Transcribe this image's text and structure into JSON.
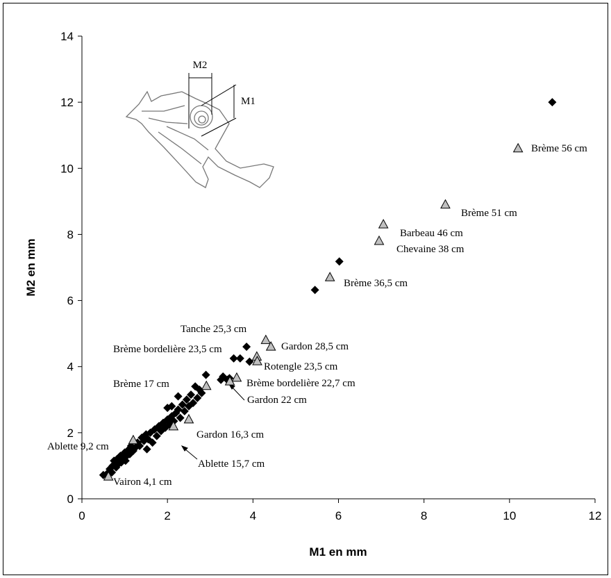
{
  "chart_data": {
    "type": "scatter",
    "x_label": "M1 en mm",
    "y_label": "M2 en mm",
    "xlim": [
      0,
      12
    ],
    "xticks": [
      0,
      2,
      4,
      6,
      8,
      10,
      12
    ],
    "ylim": [
      0,
      14
    ],
    "yticks": [
      0,
      2,
      4,
      6,
      8,
      10,
      12,
      14
    ],
    "grid": false,
    "inset_labels": [
      "M2",
      "M1"
    ],
    "series": [
      {
        "marker": "diamond",
        "color": "#000000",
        "x": [
          0.5,
          0.58,
          0.65,
          0.7,
          0.72,
          0.75,
          0.8,
          0.82,
          0.85,
          0.9,
          0.92,
          0.95,
          1.0,
          1.02,
          1.05,
          1.1,
          1.12,
          1.15,
          1.2,
          1.25,
          1.3,
          1.35,
          1.4,
          1.45,
          1.5,
          1.52,
          1.55,
          1.6,
          1.65,
          1.7,
          1.75,
          1.8,
          1.85,
          1.9,
          1.95,
          2.0,
          2.0,
          2.05,
          2.1,
          2.1,
          2.15,
          2.2,
          2.25,
          2.25,
          2.3,
          2.35,
          2.4,
          2.45,
          2.5,
          2.55,
          2.6,
          2.65,
          2.7,
          2.75,
          2.8,
          2.9,
          3.25,
          3.3,
          3.4,
          3.45,
          3.55,
          3.7,
          3.85,
          3.92,
          5.45,
          6.02,
          11.0
        ],
        "values": [
          0.72,
          0.75,
          0.9,
          0.8,
          1.0,
          1.15,
          0.95,
          1.2,
          1.05,
          1.3,
          1.1,
          1.25,
          1.4,
          1.15,
          1.3,
          1.5,
          1.35,
          1.6,
          1.45,
          1.55,
          1.7,
          1.6,
          1.85,
          1.75,
          1.95,
          1.5,
          1.8,
          2.0,
          1.7,
          2.1,
          1.9,
          2.2,
          2.05,
          2.3,
          2.15,
          2.4,
          2.75,
          2.25,
          2.8,
          2.5,
          2.35,
          2.6,
          3.1,
          2.7,
          2.45,
          2.85,
          2.65,
          3.0,
          2.8,
          3.15,
          2.9,
          3.4,
          3.05,
          3.3,
          3.2,
          3.75,
          3.6,
          3.7,
          3.6,
          3.65,
          4.25,
          4.25,
          4.6,
          4.15,
          6.32,
          7.18,
          12.0
        ]
      },
      {
        "marker": "triangle",
        "color": "#c0c0c0",
        "x": [
          10.2,
          8.5,
          7.05,
          6.95,
          5.8,
          4.3,
          4.42,
          4.09,
          3.62,
          3.46,
          4.1,
          2.91,
          2.5,
          2.14,
          1.2,
          0.62
        ],
        "values": [
          10.6,
          8.9,
          8.3,
          7.8,
          6.7,
          4.8,
          4.6,
          4.3,
          3.66,
          3.55,
          4.16,
          3.41,
          2.4,
          2.19,
          1.77,
          0.67
        ],
        "point_labels": [
          "Brème 56 cm",
          "Brème 51 cm",
          "Barbeau 46 cm",
          "Chevaine 38 cm",
          "Brème 36,5 cm",
          "Tanche 25,3 cm",
          "Gardon 28,5 cm",
          "Rotengle 23,5 cm",
          "Brème bordelière 22,7 cm",
          "Gardon 22 cm",
          "Brème bordelière 23,5 cm",
          "Brème 17 cm",
          "Gardon 16,3 cm",
          "Ablette 15,7 cm",
          "Ablette 9,2 cm",
          "Vairon 4,1 cm"
        ]
      }
    ]
  }
}
